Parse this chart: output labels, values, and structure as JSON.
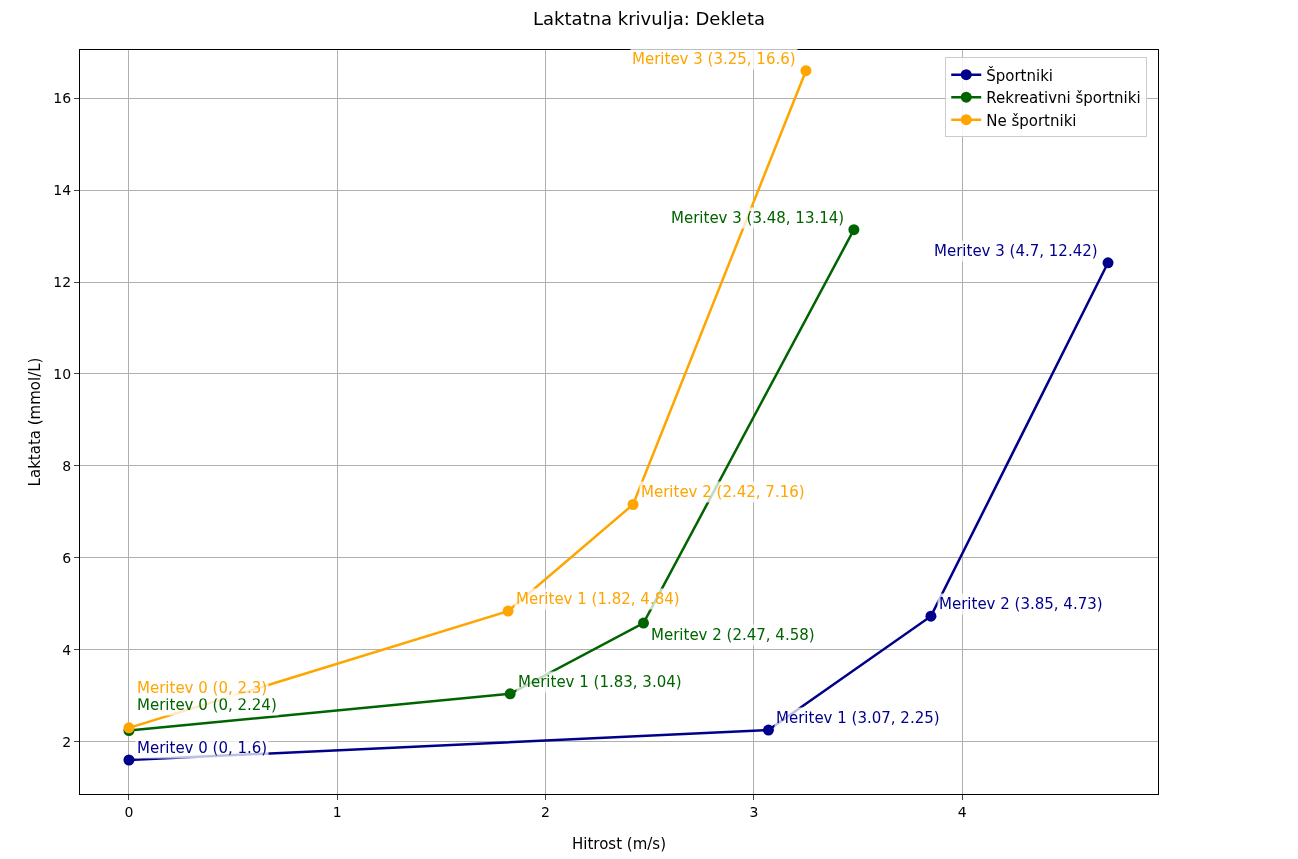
{
  "chart_data": {
    "type": "line",
    "title": "Laktatna krivulja: Dekleta",
    "xlabel": "Hitrost (m/s)",
    "ylabel": "Laktata (mmol/L)",
    "xlim": [
      -0.235,
      4.94
    ],
    "xticks": [
      0,
      1,
      2,
      3,
      4
    ],
    "ylim": [
      0.86,
      17.05
    ],
    "yticks": [
      2,
      4,
      6,
      8,
      10,
      12,
      14,
      16
    ],
    "grid": true,
    "legend": "top right",
    "marker": "circle",
    "line_style": "solid",
    "series": [
      {
        "name": "Športniki",
        "color": "#00008b",
        "x": [
          0,
          3.07,
          3.85,
          4.7
        ],
        "values": [
          1.6,
          2.25,
          4.73,
          12.42
        ],
        "value_labels": [
          "Meritev 0 (0, 1.6)",
          "Meritev 1 (3.07, 2.25)",
          "Meritev 2 (3.85, 4.73)",
          "Meritev 3 (4.7, 12.42)"
        ]
      },
      {
        "name": "Rekreativni športniki",
        "color": "#006400",
        "x": [
          0,
          1.83,
          2.47,
          3.48
        ],
        "values": [
          2.24,
          3.04,
          4.58,
          13.14
        ],
        "value_labels": [
          "Meritev 0 (0, 2.24)",
          "Meritev 1 (1.83, 3.04)",
          "Meritev 2 (2.47, 4.58)",
          "Meritev 3 (3.48, 13.14)"
        ]
      },
      {
        "name": "Ne športniki",
        "color": "#ffa500",
        "x": [
          0,
          1.82,
          2.42,
          3.25
        ],
        "values": [
          2.3,
          4.84,
          7.16,
          16.6
        ],
        "value_labels": [
          "Meritev 0 (0, 2.3)",
          "Meritev 1 (1.82, 4.84)",
          "Meritev 2 (2.42, 7.16)",
          "Meritev 3 (3.25, 16.6)"
        ]
      }
    ]
  }
}
